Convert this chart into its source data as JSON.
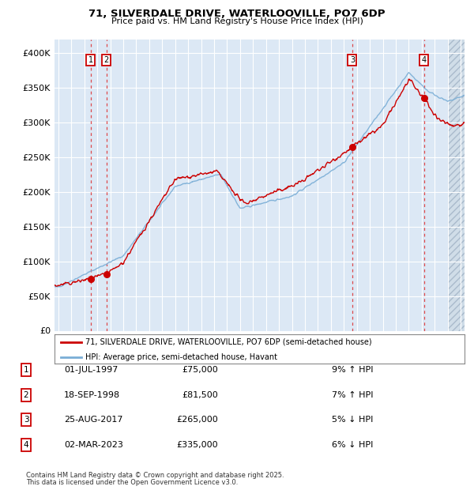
{
  "title": "71, SILVERDALE DRIVE, WATERLOOVILLE, PO7 6DP",
  "subtitle": "Price paid vs. HM Land Registry's House Price Index (HPI)",
  "legend_line1": "71, SILVERDALE DRIVE, WATERLOOVILLE, PO7 6DP (semi-detached house)",
  "legend_line2": "HPI: Average price, semi-detached house, Havant",
  "footnote1": "Contains HM Land Registry data © Crown copyright and database right 2025.",
  "footnote2": "This data is licensed under the Open Government Licence v3.0.",
  "transactions": [
    {
      "num": 1,
      "date": "01-JUL-1997",
      "price": 75000,
      "pct": "9%",
      "dir": "↑",
      "year": 1997.5
    },
    {
      "num": 2,
      "date": "18-SEP-1998",
      "price": 81500,
      "pct": "7%",
      "dir": "↑",
      "year": 1998.71
    },
    {
      "num": 3,
      "date": "25-AUG-2017",
      "price": 265000,
      "pct": "5%",
      "dir": "↓",
      "year": 2017.65
    },
    {
      "num": 4,
      "date": "02-MAR-2023",
      "price": 335000,
      "pct": "6%",
      "dir": "↓",
      "year": 2023.17
    }
  ],
  "hpi_color": "#7aaed6",
  "price_color": "#cc0000",
  "background_plot": "#dce8f5",
  "background_fig": "#ffffff",
  "grid_color": "#ffffff",
  "dashed_color": "#dd2222",
  "ylim": [
    0,
    420000
  ],
  "xlim_start": 1994.7,
  "xlim_end": 2026.3,
  "yticks": [
    0,
    50000,
    100000,
    150000,
    200000,
    250000,
    300000,
    350000,
    400000
  ],
  "xticks": [
    1995,
    1996,
    1997,
    1998,
    1999,
    2000,
    2001,
    2002,
    2003,
    2004,
    2005,
    2006,
    2007,
    2008,
    2009,
    2010,
    2011,
    2012,
    2013,
    2014,
    2015,
    2016,
    2017,
    2018,
    2019,
    2020,
    2021,
    2022,
    2023,
    2024,
    2025,
    2026
  ],
  "hatch_start": 2025.0,
  "noise_seed": 42
}
